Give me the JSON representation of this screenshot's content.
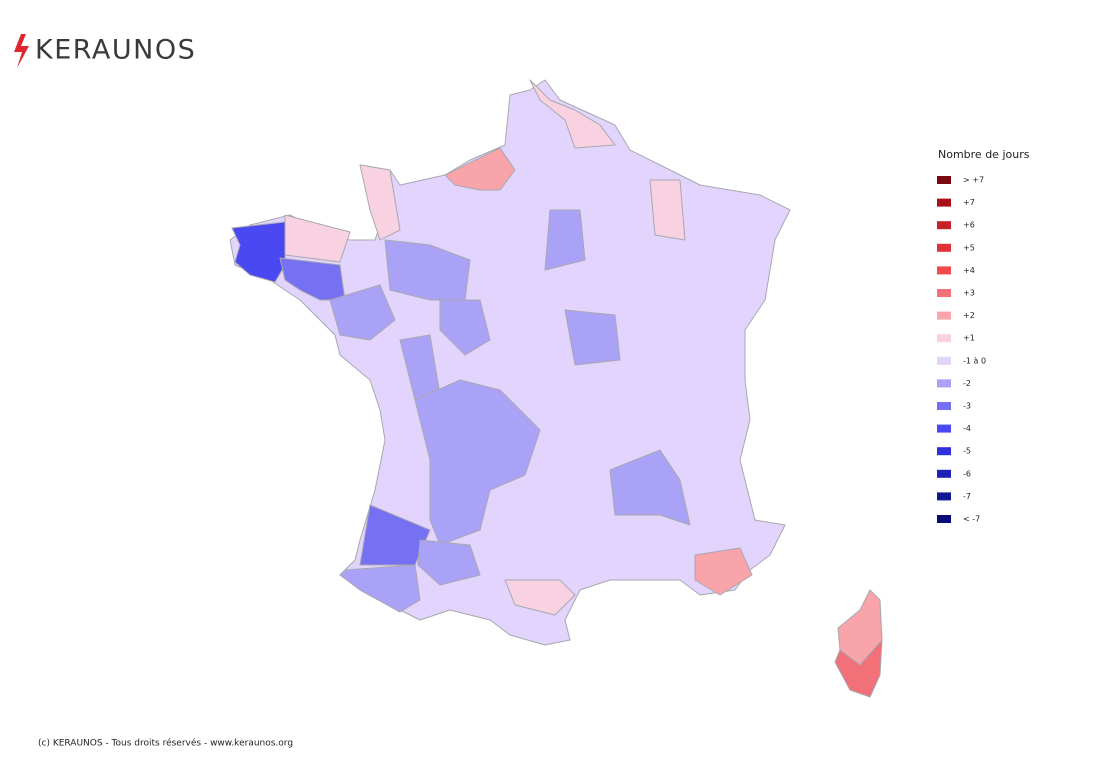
{
  "header": {
    "logo": "KERAUNOS"
  },
  "legend": {
    "title": "Nombre de jours",
    "items": [
      {
        "label": "> +7",
        "color": "#7a0a10"
      },
      {
        "label": "+7",
        "color": "#a8101a"
      },
      {
        "label": "+6",
        "color": "#c82028"
      },
      {
        "label": "+5",
        "color": "#e03038"
      },
      {
        "label": "+4",
        "color": "#f04a50"
      },
      {
        "label": "+3",
        "color": "#f27078"
      },
      {
        "label": "+2",
        "color": "#f8a4aa"
      },
      {
        "label": "+1",
        "color": "#f8d2e0"
      },
      {
        "label": "-1 à 0",
        "color": "#e2d4fc"
      },
      {
        "label": "-2",
        "color": "#aaa2f6"
      },
      {
        "label": "-3",
        "color": "#7670f2"
      },
      {
        "label": "-4",
        "color": "#4a48f2"
      },
      {
        "label": "-5",
        "color": "#3030dc"
      },
      {
        "label": "-6",
        "color": "#1e22b8"
      },
      {
        "label": "-7",
        "color": "#101890"
      },
      {
        "label": "< -7",
        "color": "#0a0a78"
      }
    ]
  },
  "map": {
    "regions": [
      {
        "color": "#e2d4fc"
      },
      {
        "color": "#4a48f2"
      },
      {
        "color": "#7670f2"
      },
      {
        "color": "#f8d2e0"
      },
      {
        "color": "#f8d2e0"
      },
      {
        "color": "#f8a4aa"
      },
      {
        "color": "#f8d2e0"
      },
      {
        "color": "#f8d2e0"
      },
      {
        "color": "#aaa2f6"
      },
      {
        "color": "#aaa2f6"
      },
      {
        "color": "#aaa2f6"
      },
      {
        "color": "#aaa2f6"
      },
      {
        "color": "#aaa2f6"
      },
      {
        "color": "#aaa2f6"
      },
      {
        "color": "#7670f2"
      },
      {
        "color": "#aaa2f6"
      },
      {
        "color": "#aaa2f6"
      },
      {
        "color": "#aaa2f6"
      },
      {
        "color": "#aaa2f6"
      },
      {
        "color": "#f8a4aa"
      },
      {
        "color": "#f8d2e0"
      },
      {
        "color": "#f8a4aa"
      },
      {
        "color": "#f27078"
      }
    ]
  },
  "footer": {
    "text": "(c) KERAUNOS - Tous droits réservés - www.keraunos.org"
  }
}
